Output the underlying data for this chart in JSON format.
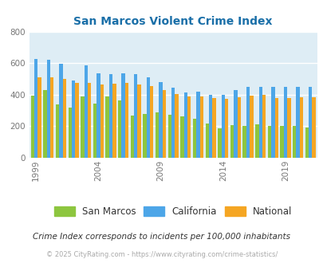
{
  "title": "San Marcos Violent Crime Index",
  "years": [
    1999,
    2000,
    2001,
    2002,
    2003,
    2004,
    2005,
    2006,
    2007,
    2008,
    2009,
    2010,
    2011,
    2012,
    2013,
    2014,
    2015,
    2016,
    2017,
    2018,
    2019,
    2020,
    2021
  ],
  "san_marcos": [
    395,
    430,
    340,
    320,
    390,
    345,
    390,
    365,
    270,
    278,
    290,
    275,
    265,
    245,
    215,
    185,
    205,
    200,
    210,
    200,
    200,
    200,
    190
  ],
  "california": [
    625,
    620,
    595,
    490,
    585,
    535,
    530,
    535,
    530,
    510,
    480,
    445,
    415,
    420,
    400,
    400,
    430,
    450,
    450,
    450,
    450,
    450,
    450
  ],
  "national": [
    510,
    510,
    500,
    475,
    475,
    465,
    470,
    475,
    465,
    455,
    430,
    405,
    390,
    390,
    380,
    375,
    385,
    395,
    400,
    380,
    380,
    385,
    385
  ],
  "colors": {
    "san_marcos": "#8dc63f",
    "california": "#4da6e8",
    "national": "#f5a623"
  },
  "xtick_labels": [
    "1999",
    "2004",
    "2009",
    "2014",
    "2019"
  ],
  "xtick_years": [
    1999,
    2004,
    2009,
    2014,
    2019
  ],
  "ylim": [
    0,
    800
  ],
  "yticks": [
    0,
    200,
    400,
    600,
    800
  ],
  "bg_color": "#deedf5",
  "legend_labels": [
    "San Marcos",
    "California",
    "National"
  ],
  "footnote1": "Crime Index corresponds to incidents per 100,000 inhabitants",
  "footnote2": "© 2025 CityRating.com - https://www.cityrating.com/crime-statistics/",
  "bar_width": 0.28
}
